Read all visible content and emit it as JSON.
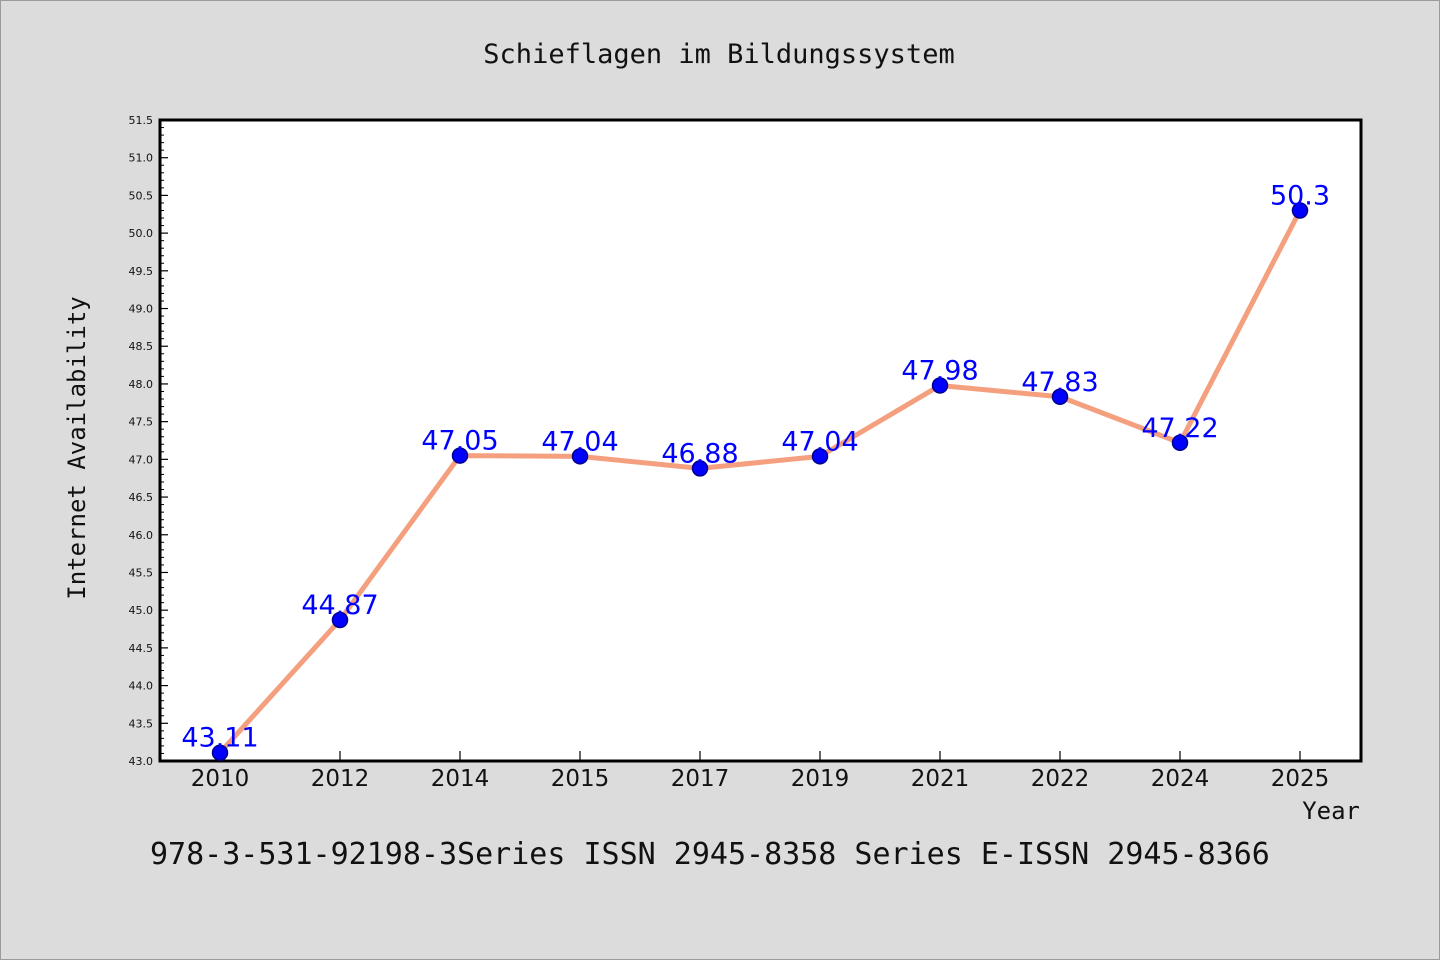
{
  "chart_data": {
    "type": "line",
    "title": "Schieflagen im Bildungssystem",
    "xlabel": "Year",
    "ylabel": "Internet Availability",
    "categories": [
      "2010",
      "2012",
      "2014",
      "2015",
      "2017",
      "2019",
      "2021",
      "2022",
      "2024",
      "2025"
    ],
    "values": [
      43.11,
      44.87,
      47.05,
      47.04,
      46.88,
      47.04,
      47.98,
      47.83,
      47.22,
      50.3
    ],
    "data_labels": [
      "43.11",
      "44.87",
      "47.05",
      "47.04",
      "46.88",
      "47.04",
      "47.98",
      "47.83",
      "47.22",
      "50.3"
    ],
    "ylim": [
      43.0,
      51.5
    ],
    "yticks": [
      "43.0",
      "43.5",
      "44.0",
      "44.5",
      "45.0",
      "45.5",
      "46.0",
      "46.5",
      "47.0",
      "47.5",
      "48.0",
      "48.5",
      "49.0",
      "49.5",
      "50.0",
      "50.5",
      "51.0",
      "51.5"
    ],
    "grid": false,
    "legend": "none",
    "colors": {
      "line": "#f4a07f",
      "marker": "#0000ff",
      "label": "#0000ff",
      "background": "#dcdcdc",
      "plot_background": "#ffffff"
    }
  },
  "footer": "978-3-531-92198-3Series ISSN 2945-8358 Series E-ISSN 2945-8366"
}
